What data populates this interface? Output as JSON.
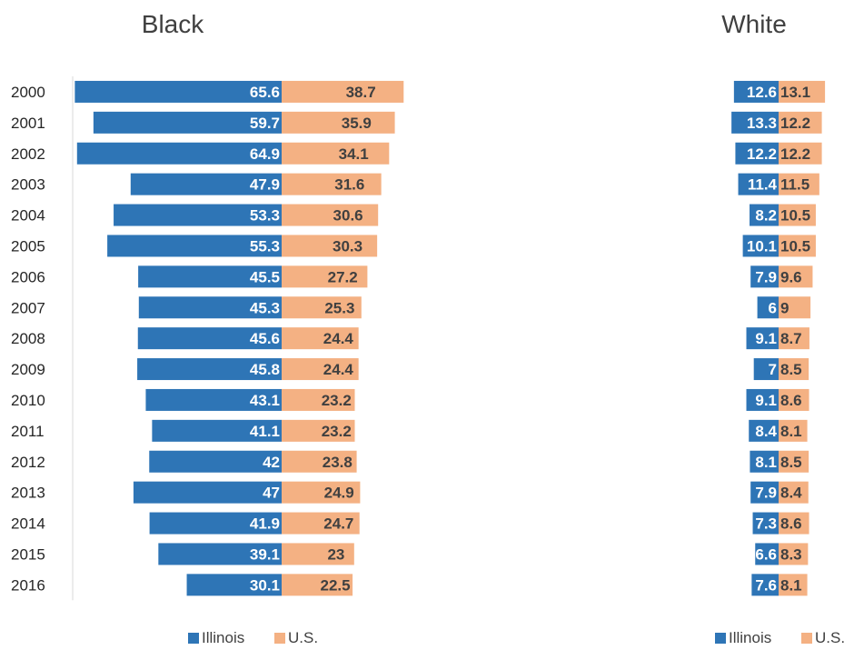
{
  "chart_data": [
    {
      "type": "bar",
      "orientation": "horizontal",
      "title": "Black",
      "categories": [
        "2000",
        "2001",
        "2002",
        "2003",
        "2004",
        "2005",
        "2006",
        "2007",
        "2008",
        "2009",
        "2010",
        "2011",
        "2012",
        "2013",
        "2014",
        "2015",
        "2016"
      ],
      "series": [
        {
          "name": "Illinois",
          "color": "#2E75B6",
          "values": [
            65.6,
            59.7,
            64.9,
            47.9,
            53.3,
            55.3,
            45.5,
            45.3,
            45.6,
            45.8,
            43.1,
            41.1,
            42,
            47,
            41.9,
            39.1,
            30.1
          ]
        },
        {
          "name": "U.S.",
          "color": "#F4B183",
          "values": [
            38.7,
            35.9,
            34.1,
            31.6,
            30.6,
            30.3,
            27.2,
            25.3,
            24.4,
            24.4,
            23.2,
            23.2,
            23.8,
            24.9,
            24.7,
            23,
            22.5
          ]
        }
      ],
      "legend": "bottom",
      "grid": false
    },
    {
      "type": "bar",
      "orientation": "horizontal",
      "title": "White",
      "categories": [
        "2000",
        "2001",
        "2002",
        "2003",
        "2004",
        "2005",
        "2006",
        "2007",
        "2008",
        "2009",
        "2010",
        "2011",
        "2012",
        "2013",
        "2014",
        "2015",
        "2016"
      ],
      "series": [
        {
          "name": "Illinois",
          "color": "#2E75B6",
          "values": [
            12.6,
            13.3,
            12.2,
            11.4,
            8.2,
            10.1,
            7.9,
            6,
            9.1,
            7,
            9.1,
            8.4,
            8.1,
            7.9,
            7.3,
            6.6,
            7.6
          ]
        },
        {
          "name": "U.S.",
          "color": "#F4B183",
          "values": [
            13.1,
            12.2,
            12.2,
            11.5,
            10.5,
            10.5,
            9.6,
            9,
            8.7,
            8.5,
            8.6,
            8.1,
            8.5,
            8.4,
            8.6,
            8.3,
            8.1
          ]
        }
      ],
      "legend": "bottom",
      "grid": false
    }
  ]
}
